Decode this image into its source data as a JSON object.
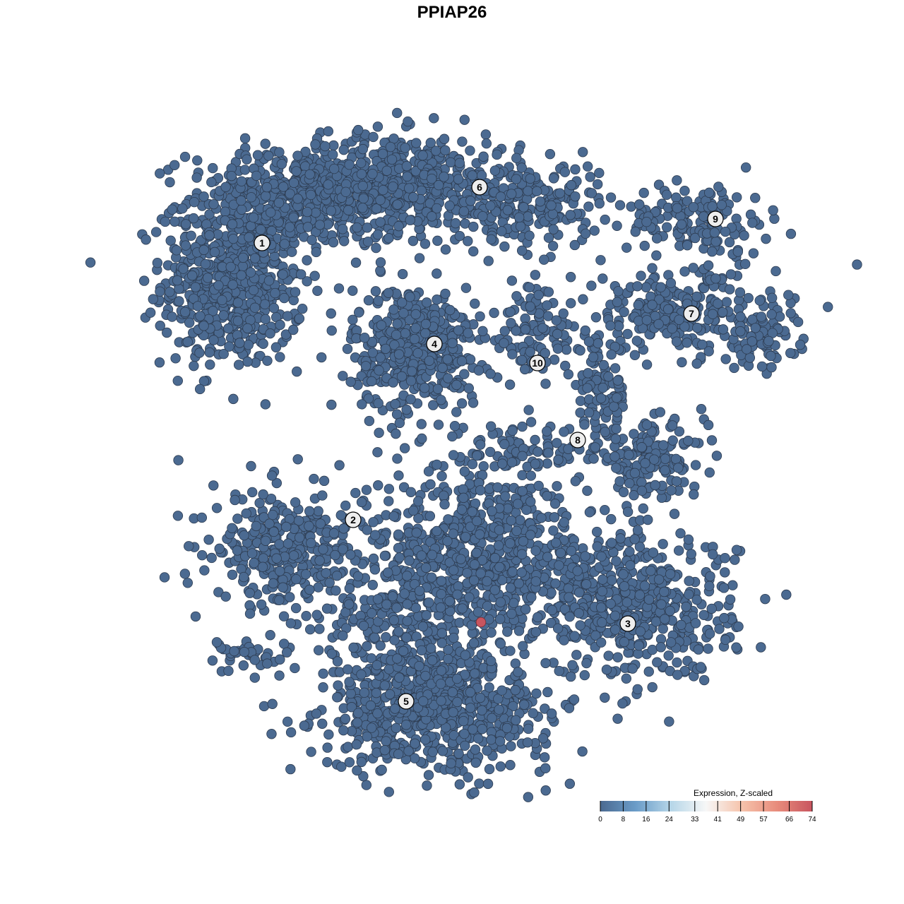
{
  "chart_data": {
    "type": "scatter",
    "title": "PPIAP26",
    "xlabel": "",
    "ylabel": "",
    "grid": false,
    "point_color_low": "#4b6a91",
    "point_color_high": "#c8555f",
    "clusters": [
      {
        "label": "1",
        "label_pos": [
          -26.9,
          29.6
        ],
        "blobs": [
          {
            "center": [
              -31,
              24
            ],
            "sd": [
              5,
              6
            ],
            "n": 600
          },
          {
            "center": [
              -21,
              36
            ],
            "sd": [
              8,
              3.5
            ],
            "n": 350
          }
        ]
      },
      {
        "label": "6",
        "label_pos": [
          3.9,
          37.5
        ],
        "blobs": [
          {
            "center": [
              -8,
              38
            ],
            "sd": [
              9,
              3.5
            ],
            "n": 550
          },
          {
            "center": [
              11,
              35
            ],
            "sd": [
              5,
              3
            ],
            "n": 200
          }
        ]
      },
      {
        "label": "4",
        "label_pos": [
          -2.5,
          15.3
        ],
        "blobs": [
          {
            "center": [
              -5,
              14.5
            ],
            "sd": [
              4.5,
              4.5
            ],
            "n": 450
          }
        ]
      },
      {
        "label": "9",
        "label_pos": [
          37.3,
          33
        ],
        "blobs": [
          {
            "center": [
              35,
              33
            ],
            "sd": [
              5,
              2.5
            ],
            "n": 150
          }
        ]
      },
      {
        "label": "7",
        "label_pos": [
          33.9,
          19.6
        ],
        "blobs": [
          {
            "center": [
              32,
              20
            ],
            "sd": [
              7,
              3
            ],
            "n": 250
          },
          {
            "center": [
              43,
              16
            ],
            "sd": [
              3,
              2
            ],
            "n": 80
          }
        ]
      },
      {
        "label": "10",
        "label_pos": [
          12.1,
          12.6
        ],
        "blobs": [
          {
            "center": [
              12,
              17
            ],
            "sd": [
              3.5,
              4
            ],
            "n": 100
          }
        ]
      },
      {
        "label": "8",
        "label_pos": [
          17.8,
          1.7
        ],
        "blobs": [
          {
            "center": [
              28,
              -1
            ],
            "sd": [
              4,
              2.5
            ],
            "n": 150
          },
          {
            "center": [
              21,
              8
            ],
            "sd": [
              2,
              4
            ],
            "n": 100
          },
          {
            "center": [
              9,
              0
            ],
            "sd": [
              5,
              2
            ],
            "n": 80
          }
        ]
      },
      {
        "label": "2",
        "label_pos": [
          -14,
          -9.6
        ],
        "blobs": [
          {
            "center": [
              -24,
              -14
            ],
            "sd": [
              5,
              4
            ],
            "n": 300
          }
        ]
      },
      {
        "label": "3",
        "label_pos": [
          24.9,
          -24.3
        ],
        "blobs": [
          {
            "center": [
              26,
              -22
            ],
            "sd": [
              7,
              5
            ],
            "n": 500
          }
        ]
      },
      {
        "label": "5",
        "label_pos": [
          -6.5,
          -35.3
        ],
        "blobs": [
          {
            "center": [
              -2,
              -37
            ],
            "sd": [
              8,
              4
            ],
            "n": 600
          },
          {
            "center": [
              -7,
              -26
            ],
            "sd": [
              6,
              6
            ],
            "n": 300
          },
          {
            "center": [
              4,
              -14
            ],
            "sd": [
              8,
              6
            ],
            "n": 700
          },
          {
            "center": [
              -29,
              -29
            ],
            "sd": [
              3,
              1.5
            ],
            "n": 40
          }
        ]
      }
    ],
    "highlighted_points": [
      {
        "x": 4.1,
        "y": -24.1,
        "value": 74
      }
    ],
    "background_value": 0,
    "legend": {
      "title": "Expression, Z-scaled",
      "placement": "bottom-right",
      "ticks": [
        "0",
        "8",
        "16",
        "24",
        "33",
        "41",
        "49",
        "57",
        "66",
        "74"
      ],
      "range": [
        0,
        74
      ],
      "colors": [
        "#4b6a91",
        "#6a9cc8",
        "#b6d6e8",
        "#f7f7f7",
        "#f6c3ab",
        "#e88c7c",
        "#c8555f"
      ]
    }
  }
}
